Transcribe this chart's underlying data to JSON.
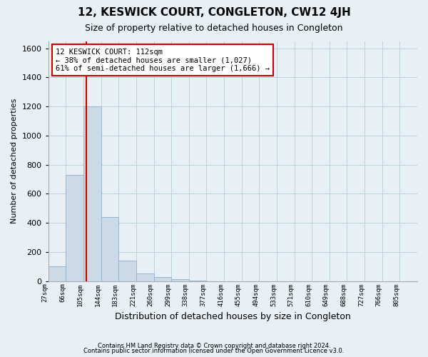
{
  "title": "12, KESWICK COURT, CONGLETON, CW12 4JH",
  "subtitle": "Size of property relative to detached houses in Congleton",
  "xlabel": "Distribution of detached houses by size in Congleton",
  "ylabel": "Number of detached properties",
  "footnote1": "Contains HM Land Registry data © Crown copyright and database right 2024.",
  "footnote2": "Contains public sector information licensed under the Open Government Licence v3.0.",
  "x_labels": [
    "27sqm",
    "66sqm",
    "105sqm",
    "144sqm",
    "183sqm",
    "221sqm",
    "260sqm",
    "299sqm",
    "338sqm",
    "377sqm",
    "416sqm",
    "455sqm",
    "494sqm",
    "533sqm",
    "571sqm",
    "610sqm",
    "649sqm",
    "688sqm",
    "727sqm",
    "766sqm",
    "805sqm"
  ],
  "bar_values": [
    100,
    730,
    1200,
    440,
    140,
    50,
    30,
    15,
    5,
    0,
    0,
    0,
    0,
    0,
    0,
    0,
    0,
    0,
    0,
    0,
    0
  ],
  "bar_color": "#ccdae8",
  "bar_edgecolor": "#9ab4cc",
  "grid_color": "#b8ccd8",
  "bg_color": "#e8eff5",
  "property_label": "12 KESWICK COURT: 112sqm",
  "annotation_line1": "← 38% of detached houses are smaller (1,027)",
  "annotation_line2": "61% of semi-detached houses are larger (1,666) →",
  "annotation_box_color": "#ffffff",
  "annotation_border_color": "#cc0000",
  "vline_color": "#cc0000",
  "ylim": [
    0,
    1650
  ],
  "yticks": [
    0,
    200,
    400,
    600,
    800,
    1000,
    1200,
    1400,
    1600
  ],
  "bin_starts": [
    27,
    66,
    105,
    144,
    183,
    221,
    260,
    299,
    338,
    377,
    416,
    455,
    494,
    533,
    571,
    610,
    649,
    688,
    727,
    766,
    805
  ],
  "property_sqm": 112
}
